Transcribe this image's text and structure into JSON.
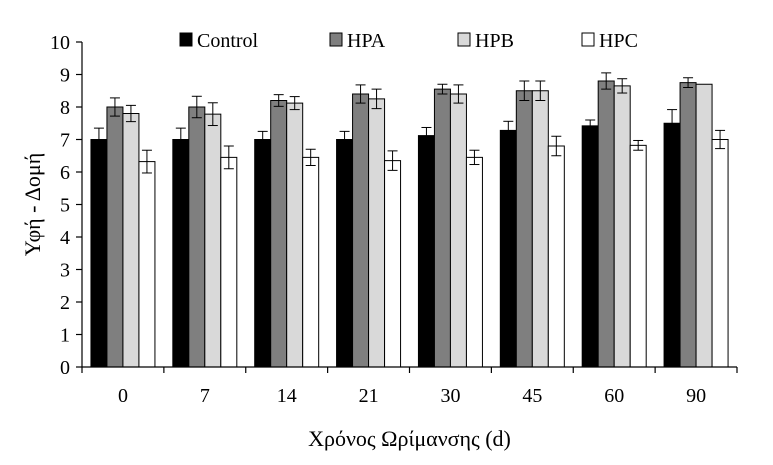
{
  "chart_data": {
    "type": "bar",
    "title": "",
    "xlabel": "Χρόνος Ωρίμανσης (d)",
    "ylabel": "Υφή - Δομή",
    "categories": [
      "0",
      "7",
      "14",
      "21",
      "30",
      "45",
      "60",
      "90"
    ],
    "ylim": [
      0,
      10
    ],
    "yticks": [
      "0",
      "1",
      "2",
      "3",
      "4",
      "5",
      "6",
      "7",
      "8",
      "9",
      "10"
    ],
    "grid": false,
    "legend_position": "top",
    "error_bars": true,
    "series": [
      {
        "name": "Control",
        "color": "#000000",
        "values": [
          7.0,
          7.0,
          7.0,
          7.0,
          7.12,
          7.28,
          7.42,
          7.5
        ],
        "errors": [
          0.35,
          0.35,
          0.25,
          0.25,
          0.25,
          0.28,
          0.18,
          0.42
        ]
      },
      {
        "name": "HPA",
        "color": "#7f7f7f",
        "values": [
          8.0,
          8.0,
          8.2,
          8.4,
          8.55,
          8.5,
          8.8,
          8.75
        ],
        "errors": [
          0.28,
          0.33,
          0.18,
          0.28,
          0.15,
          0.3,
          0.25,
          0.15
        ]
      },
      {
        "name": "HPB",
        "color": "#d9d9d9",
        "values": [
          7.8,
          7.78,
          8.12,
          8.25,
          8.4,
          8.5,
          8.65,
          8.7
        ],
        "errors": [
          0.25,
          0.35,
          0.2,
          0.3,
          0.28,
          0.3,
          0.22,
          0
        ]
      },
      {
        "name": "HPC",
        "color": "#ffffff",
        "values": [
          6.32,
          6.45,
          6.45,
          6.35,
          6.45,
          6.8,
          6.82,
          7.0
        ],
        "errors": [
          0.35,
          0.35,
          0.25,
          0.3,
          0.22,
          0.3,
          0.15,
          0.28
        ]
      }
    ]
  }
}
